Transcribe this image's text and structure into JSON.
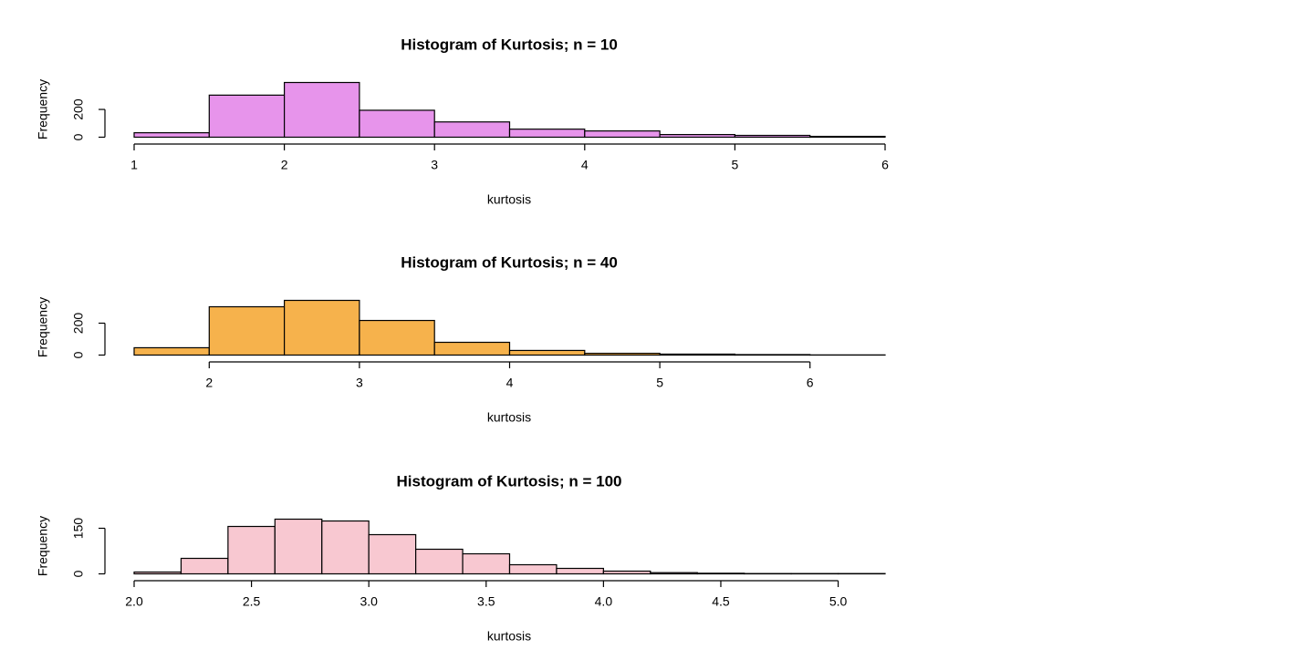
{
  "chart_data": [
    {
      "type": "histogram",
      "title": "Histogram of Kurtosis; n = 10",
      "xlabel": "kurtosis",
      "ylabel": "Frequency",
      "color": "#e794eb",
      "bins": [
        1,
        1.5,
        2,
        2.5,
        3,
        3.5,
        4,
        4.5,
        5,
        5.5,
        6
      ],
      "values": [
        32,
        303,
        394,
        194,
        110,
        58,
        45,
        19,
        13,
        6
      ],
      "xlim": [
        1,
        6
      ],
      "xticks": [
        1,
        2,
        3,
        4,
        5,
        6
      ],
      "ylim": [
        0,
        394
      ],
      "yticks": [
        0,
        200
      ]
    },
    {
      "type": "histogram",
      "title": "Histogram of Kurtosis; n = 40",
      "xlabel": "kurtosis",
      "ylabel": "Frequency",
      "color": "#f6b24c",
      "bins": [
        1.5,
        2,
        2.5,
        3,
        3.5,
        4,
        4.5,
        5,
        5.5,
        6,
        6.5
      ],
      "values": [
        46,
        303,
        343,
        217,
        80,
        29,
        11,
        6,
        3,
        1
      ],
      "xlim": [
        1.5,
        6.5
      ],
      "xticks": [
        2,
        3,
        4,
        5,
        6
      ],
      "ylim": [
        0,
        343
      ],
      "yticks": [
        0,
        200
      ]
    },
    {
      "type": "histogram",
      "title": "Histogram of Kurtosis; n = 100",
      "xlabel": "kurtosis",
      "ylabel": "Frequency",
      "color": "#f8c8d1",
      "bins": [
        2.0,
        2.2,
        2.4,
        2.6,
        2.8,
        3.0,
        3.2,
        3.4,
        3.6,
        3.8,
        4.0,
        4.2,
        4.4,
        4.6,
        4.8,
        5.0,
        5.2
      ],
      "values": [
        6,
        51,
        156,
        180,
        174,
        129,
        81,
        66,
        30,
        18,
        9,
        4,
        2,
        1,
        1,
        1
      ],
      "xlim": [
        2.0,
        5.2
      ],
      "xticks": [
        {
          "value": 2,
          "label": "2.0"
        },
        2.5,
        {
          "value": 3,
          "label": "3.0"
        },
        3.5,
        {
          "value": 4,
          "label": "4.0"
        },
        4.5,
        {
          "value": 5,
          "label": "5.0"
        }
      ],
      "ylim": [
        0,
        180
      ],
      "yticks": [
        0,
        150
      ]
    }
  ]
}
